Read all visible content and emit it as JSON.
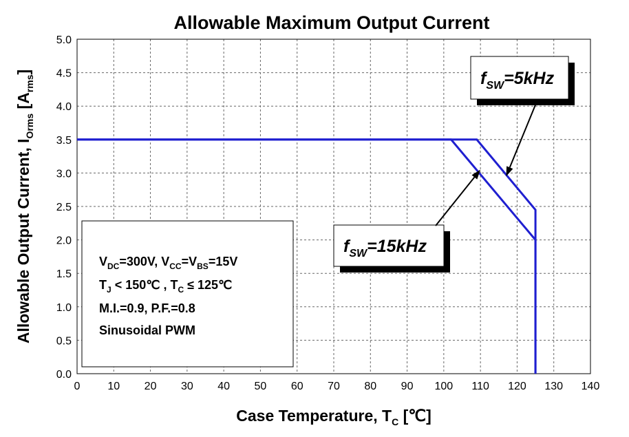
{
  "chart_data": {
    "type": "line",
    "title": "Allowable Maximum Output Current",
    "xlabel": {
      "main": "Case Temperature, T",
      "sub": "C",
      "unit": " [℃]"
    },
    "ylabel": {
      "main": "Allowable Output Current, I",
      "sub": "Orms",
      "unit_open": " [A",
      "unit_sub": "rms",
      "unit_close": "]"
    },
    "xlim": [
      0,
      140
    ],
    "ylim": [
      0,
      5
    ],
    "x_ticks": [
      "0",
      "10",
      "20",
      "30",
      "40",
      "50",
      "60",
      "70",
      "80",
      "90",
      "100",
      "110",
      "120",
      "130",
      "140"
    ],
    "y_ticks": [
      "0.0",
      "0.5",
      "1.0",
      "1.5",
      "2.0",
      "2.5",
      "3.0",
      "3.5",
      "4.0",
      "4.5",
      "5.0"
    ],
    "grid": true,
    "line_color": "#1f1fd0",
    "series": [
      {
        "name": "fsw=5kHz",
        "points": [
          [
            0,
            3.5
          ],
          [
            109,
            3.5
          ],
          [
            125,
            2.45
          ],
          [
            125,
            0
          ]
        ]
      },
      {
        "name": "fsw=15kHz",
        "points": [
          [
            0,
            3.5
          ],
          [
            102,
            3.5
          ],
          [
            125,
            2.0
          ],
          [
            125,
            0
          ]
        ]
      }
    ],
    "annotations": [
      {
        "label_main": "f",
        "label_sub": "SW",
        "label_rest": "=5kHz",
        "arrow_to": [
          117,
          2.95
        ]
      },
      {
        "label_main": "f",
        "label_sub": "SW",
        "label_rest": "=15kHz",
        "arrow_to": [
          110,
          3.05
        ]
      }
    ],
    "conditions": [
      {
        "parts": [
          [
            "V",
            ""
          ],
          [
            "DC",
            "sub"
          ],
          [
            "=300V, V",
            ""
          ],
          [
            "CC",
            "sub"
          ],
          [
            "=V",
            ""
          ],
          [
            "BS",
            "sub"
          ],
          [
            "=15V",
            ""
          ]
        ]
      },
      {
        "parts": [
          [
            "T",
            ""
          ],
          [
            "J",
            "sub"
          ],
          [
            " < 150℃ , T",
            ""
          ],
          [
            "C",
            "sub"
          ],
          [
            " ≤ 125℃",
            ""
          ]
        ]
      },
      {
        "parts": [
          [
            "M.I.=0.9, P.F.=0.8",
            ""
          ]
        ]
      },
      {
        "parts": [
          [
            "Sinusoidal PWM",
            ""
          ]
        ]
      }
    ]
  }
}
